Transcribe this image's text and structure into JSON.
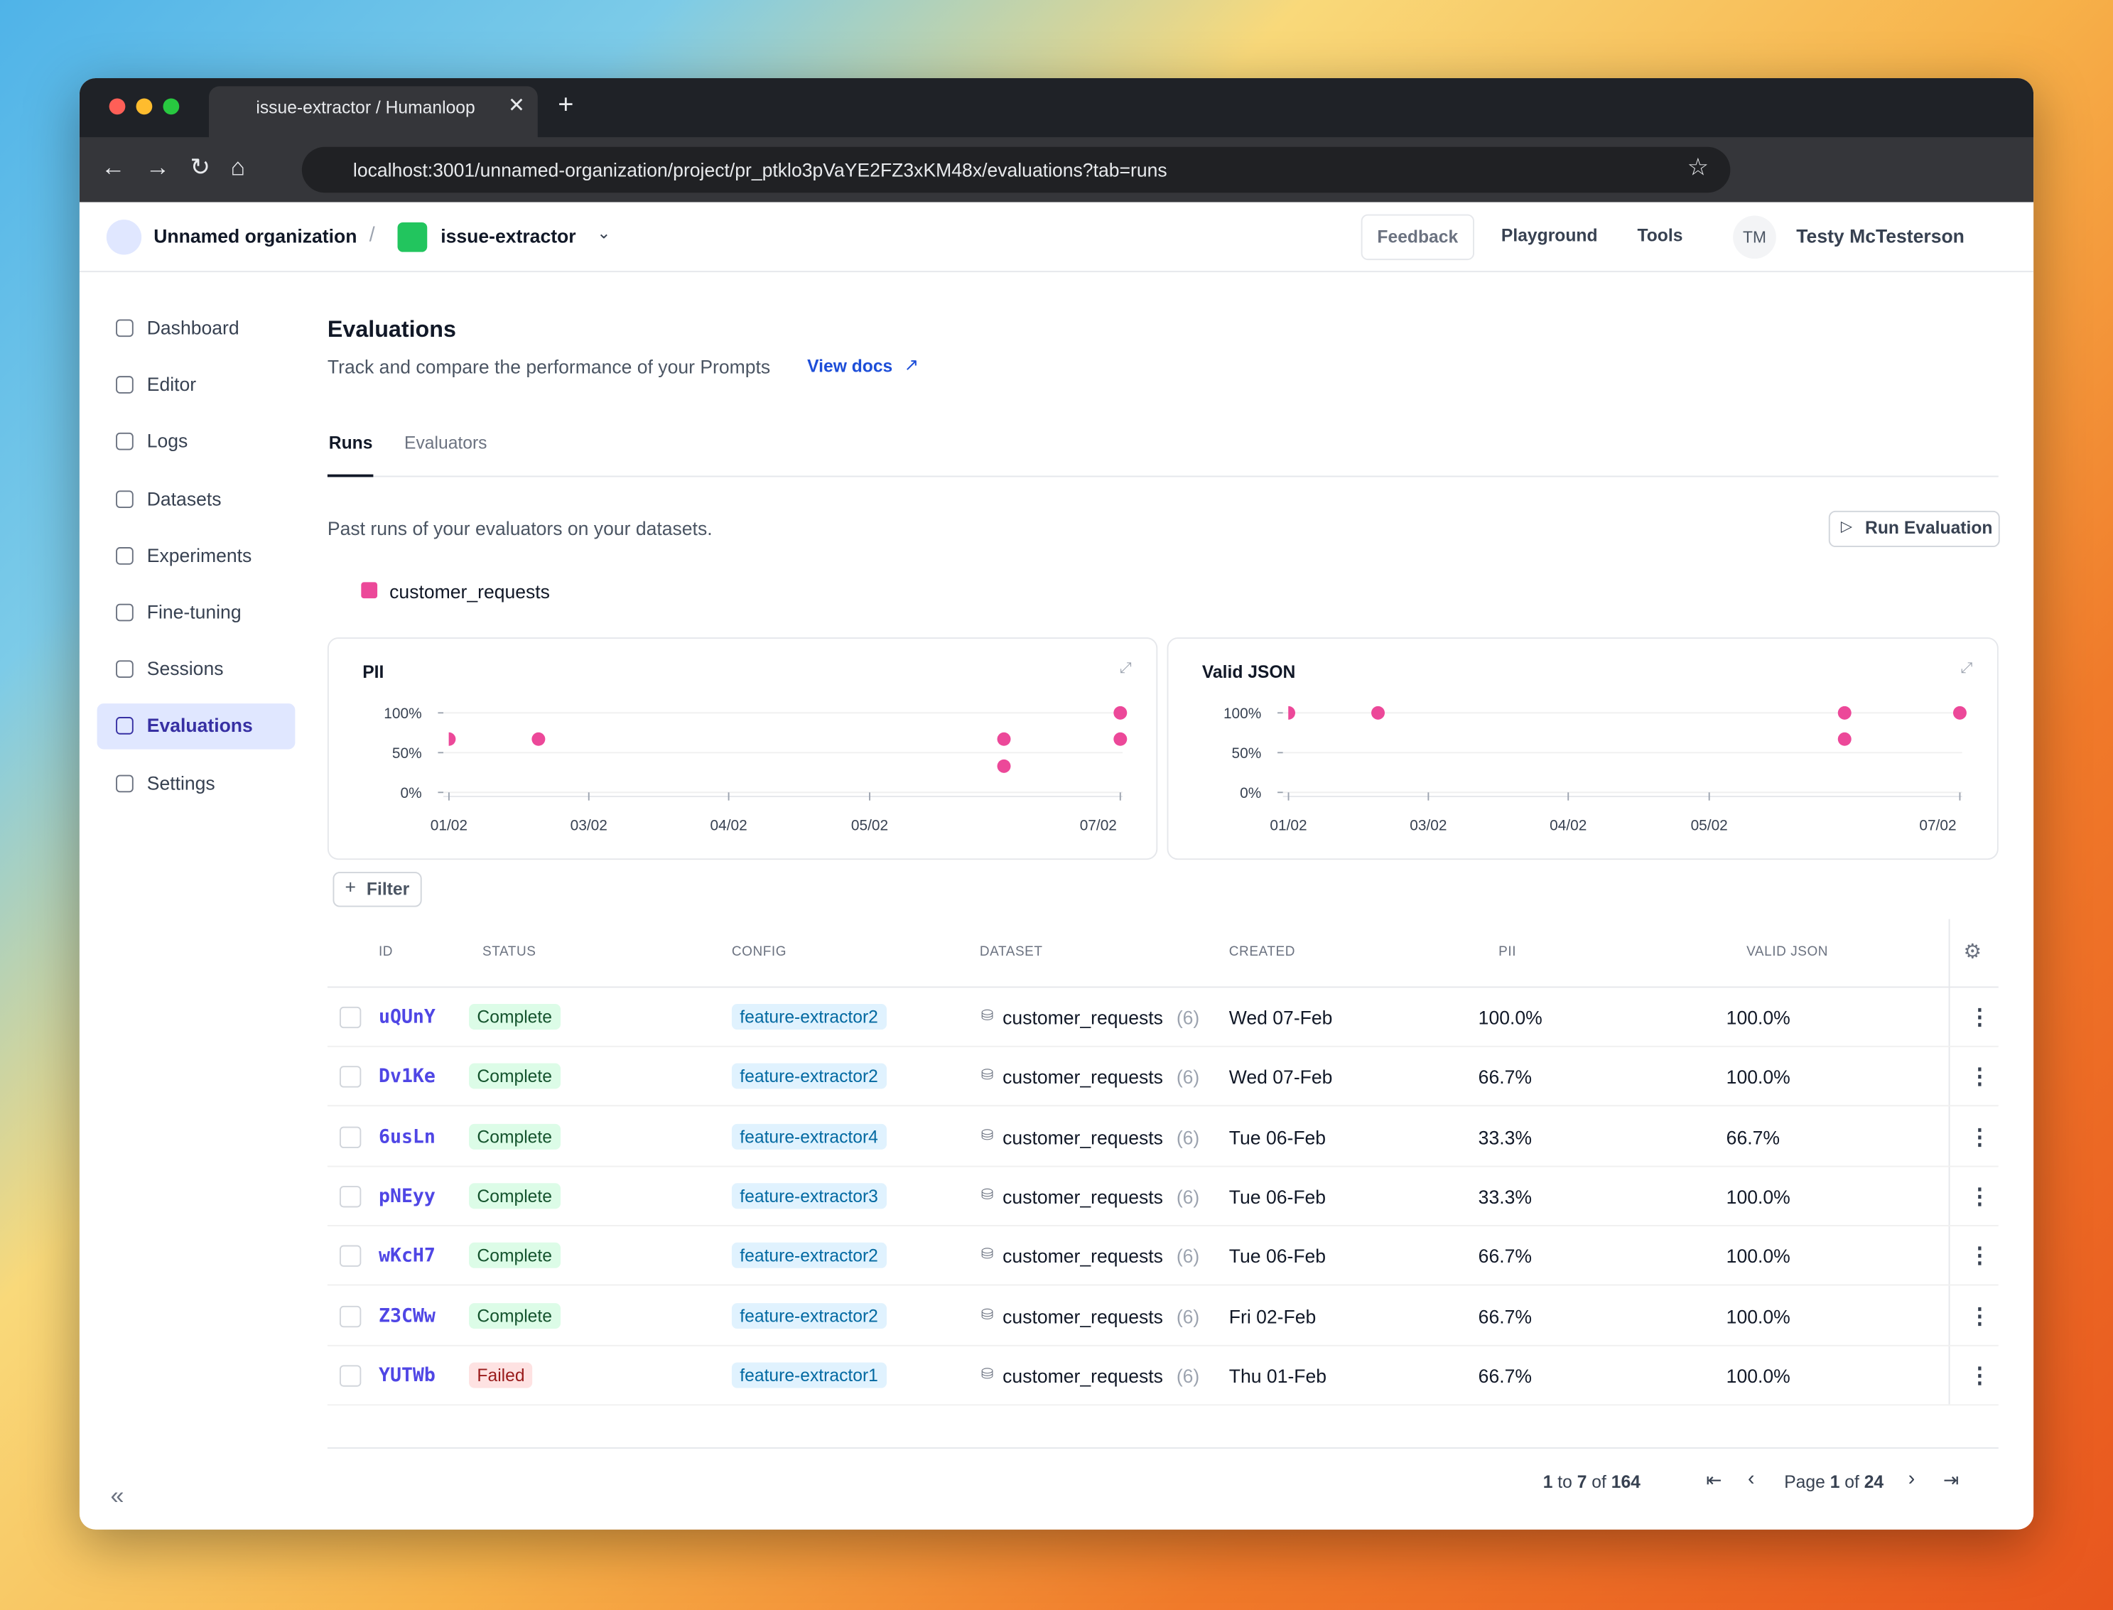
{
  "browser": {
    "tab_title": "issue-extractor / Humanloop",
    "url": "localhost:3001/unnamed-organization/project/pr_ptklo3pVaYE2FZ3xKM48x/evaluations?tab=runs"
  },
  "header": {
    "org": "Unnamed organization",
    "project": "issue-extractor",
    "buttons": [
      "Feedback",
      "Playground",
      "Tools"
    ],
    "avatar": "TM",
    "user": "Testy McTesterson"
  },
  "sidebar": [
    {
      "label": "Dashboard"
    },
    {
      "label": "Editor"
    },
    {
      "label": "Logs"
    },
    {
      "label": "Datasets"
    },
    {
      "label": "Experiments"
    },
    {
      "label": "Fine-tuning"
    },
    {
      "label": "Sessions"
    },
    {
      "label": "Evaluations",
      "active": true
    },
    {
      "label": "Settings"
    }
  ],
  "page": {
    "title": "Evaluations",
    "subtitle": "Track and compare the performance of your Prompts",
    "docs_link": "View docs",
    "tabs": [
      "Runs",
      "Evaluators"
    ],
    "description": "Past runs of your evaluators on your datasets.",
    "run_button": "Run Evaluation",
    "legend": {
      "name": "customer_requests",
      "color": "#ec4899"
    }
  },
  "charts": [
    {
      "type": "scatter",
      "title": "PII",
      "color": "#ec4899",
      "x": [
        1,
        1.8,
        5.96,
        5.96,
        7,
        7
      ],
      "values": [
        67,
        67,
        67,
        33,
        100,
        67
      ],
      "xlim": [
        0.95,
        7.02
      ],
      "xticks": [
        {
          "value": 1,
          "label": "01/02"
        },
        {
          "value": 2.25,
          "label": "03/02"
        },
        {
          "value": 3.5,
          "label": "04/02"
        },
        {
          "value": 4.76,
          "label": "05/02"
        },
        {
          "value": 7,
          "label": "07/02"
        }
      ],
      "ylim": [
        0,
        100
      ],
      "yticks": [
        {
          "value": 0,
          "label": "0%"
        },
        {
          "value": 50,
          "label": "50%"
        },
        {
          "value": 100,
          "label": "100%"
        }
      ],
      "grid": true
    },
    {
      "type": "scatter",
      "title": "Valid JSON",
      "color": "#ec4899",
      "x": [
        1,
        1.8,
        5.97,
        5.97,
        7
      ],
      "values": [
        100,
        100,
        100,
        67,
        100
      ],
      "xlim": [
        0.95,
        7.02
      ],
      "xticks": [
        {
          "value": 1,
          "label": "01/02"
        },
        {
          "value": 2.25,
          "label": "03/02"
        },
        {
          "value": 3.5,
          "label": "04/02"
        },
        {
          "value": 4.76,
          "label": "05/02"
        },
        {
          "value": 7,
          "label": "07/02"
        }
      ],
      "ylim": [
        0,
        100
      ],
      "yticks": [
        {
          "value": 0,
          "label": "0%"
        },
        {
          "value": 50,
          "label": "50%"
        },
        {
          "value": 100,
          "label": "100%"
        }
      ],
      "grid": true
    }
  ],
  "filter": "Filter",
  "table": {
    "columns": [
      "ID",
      "STATUS",
      "CONFIG",
      "DATASET",
      "CREATED",
      "PII",
      "VALID JSON"
    ],
    "rows": [
      [
        "uQUnY",
        "Complete",
        "feature-extractor2",
        "customer_requests",
        "(6)",
        "Wed 07-Feb",
        "100.0%",
        "100.0%"
      ],
      [
        "Dv1Ke",
        "Complete",
        "feature-extractor2",
        "customer_requests",
        "(6)",
        "Wed 07-Feb",
        "66.7%",
        "100.0%"
      ],
      [
        "6usLn",
        "Complete",
        "feature-extractor4",
        "customer_requests",
        "(6)",
        "Tue 06-Feb",
        "33.3%",
        "66.7%"
      ],
      [
        "pNEyy",
        "Complete",
        "feature-extractor3",
        "customer_requests",
        "(6)",
        "Tue 06-Feb",
        "33.3%",
        "100.0%"
      ],
      [
        "wKcH7",
        "Complete",
        "feature-extractor2",
        "customer_requests",
        "(6)",
        "Tue 06-Feb",
        "66.7%",
        "100.0%"
      ],
      [
        "Z3CWw",
        "Complete",
        "feature-extractor2",
        "customer_requests",
        "(6)",
        "Fri 02-Feb",
        "66.7%",
        "100.0%"
      ],
      [
        "YUTWb",
        "Failed",
        "feature-extractor1",
        "customer_requests",
        "(6)",
        "Thu 01-Feb",
        "66.7%",
        "100.0%"
      ]
    ]
  },
  "pagination": {
    "range": [
      "1",
      " to ",
      "7",
      " of ",
      "164"
    ],
    "page": [
      "Page ",
      "1",
      " of ",
      "24"
    ]
  }
}
